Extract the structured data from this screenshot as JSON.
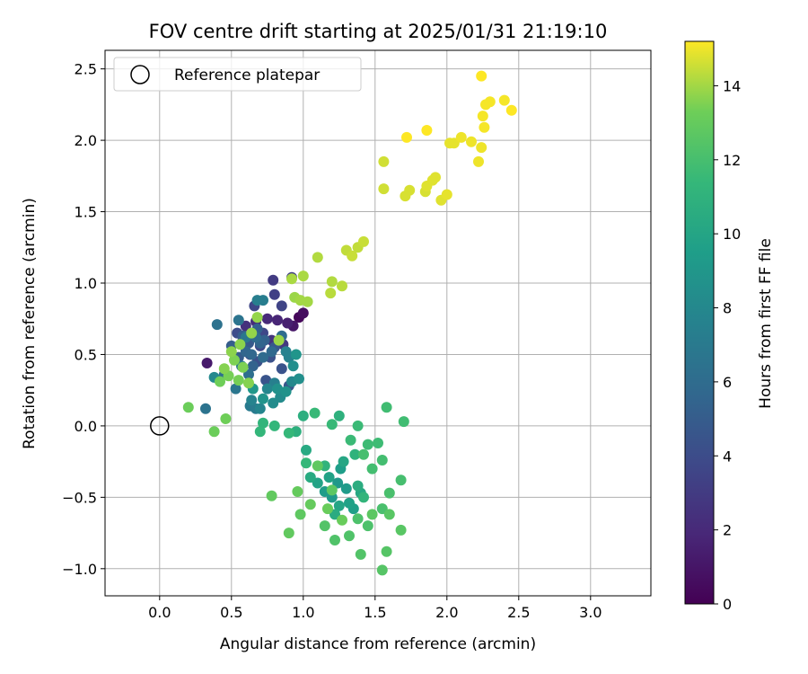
{
  "chart_data": {
    "type": "scatter",
    "title": "FOV centre drift starting at 2025/01/31 21:19:10",
    "xlabel": "Angular distance from reference (arcmin)",
    "ylabel": "Rotation from reference (arcmin)",
    "xlim": [
      -0.38,
      3.42
    ],
    "ylim": [
      -1.19,
      2.63
    ],
    "xticks": [
      0.0,
      0.5,
      1.0,
      1.5,
      2.0,
      2.5,
      3.0
    ],
    "xtick_labels": [
      "0.0",
      "0.5",
      "1.0",
      "1.5",
      "2.0",
      "2.5",
      "3.0"
    ],
    "yticks": [
      -1.0,
      -0.5,
      0.0,
      0.5,
      1.0,
      1.5,
      2.0,
      2.5
    ],
    "ytick_labels": [
      "−1.0",
      "−0.5",
      "0.0",
      "0.5",
      "1.0",
      "1.5",
      "2.0",
      "2.5"
    ],
    "grid": true,
    "legend": {
      "placement": "top-left",
      "entries": [
        {
          "label": "Reference platepar",
          "marker": "open-circle"
        }
      ]
    },
    "reference_point": {
      "x": 0.0,
      "y": 0.0
    },
    "colorbar": {
      "label": "Hours from first FF file",
      "colormap": "viridis",
      "range": [
        0,
        15.2
      ],
      "ticks": [
        0,
        2,
        4,
        6,
        8,
        10,
        12,
        14
      ],
      "tick_labels": [
        "0",
        "2",
        "4",
        "6",
        "8",
        "10",
        "12",
        "14"
      ]
    },
    "points": [
      {
        "x": 0.97,
        "y": 0.76,
        "c": 0.3
      },
      {
        "x": 1.0,
        "y": 0.79,
        "c": 0.6
      },
      {
        "x": 0.93,
        "y": 0.7,
        "c": 1.0
      },
      {
        "x": 0.33,
        "y": 0.44,
        "c": 1.2
      },
      {
        "x": 0.89,
        "y": 0.72,
        "c": 1.5
      },
      {
        "x": 0.82,
        "y": 0.74,
        "c": 1.8
      },
      {
        "x": 0.75,
        "y": 0.75,
        "c": 2.0
      },
      {
        "x": 0.67,
        "y": 0.73,
        "c": 2.2
      },
      {
        "x": 0.6,
        "y": 0.7,
        "c": 2.4
      },
      {
        "x": 0.78,
        "y": 0.6,
        "c": 2.6
      },
      {
        "x": 0.86,
        "y": 0.57,
        "c": 2.8
      },
      {
        "x": 0.79,
        "y": 1.02,
        "c": 3.0
      },
      {
        "x": 0.92,
        "y": 1.04,
        "c": 3.2
      },
      {
        "x": 0.8,
        "y": 0.92,
        "c": 3.3
      },
      {
        "x": 0.85,
        "y": 0.84,
        "c": 3.5
      },
      {
        "x": 0.66,
        "y": 0.84,
        "c": 3.6
      },
      {
        "x": 0.72,
        "y": 0.65,
        "c": 3.7
      },
      {
        "x": 0.7,
        "y": 0.56,
        "c": 3.8
      },
      {
        "x": 0.58,
        "y": 0.6,
        "c": 3.9
      },
      {
        "x": 0.54,
        "y": 0.65,
        "c": 4.0
      },
      {
        "x": 0.63,
        "y": 0.5,
        "c": 4.1
      },
      {
        "x": 0.68,
        "y": 0.45,
        "c": 4.2
      },
      {
        "x": 0.77,
        "y": 0.48,
        "c": 4.3
      },
      {
        "x": 0.85,
        "y": 0.4,
        "c": 4.4
      },
      {
        "x": 0.74,
        "y": 0.32,
        "c": 4.5
      },
      {
        "x": 0.9,
        "y": 0.28,
        "c": 4.6
      },
      {
        "x": 0.8,
        "y": 0.55,
        "c": 4.7
      },
      {
        "x": 0.62,
        "y": 0.58,
        "c": 4.8
      },
      {
        "x": 0.55,
        "y": 0.48,
        "c": 4.9
      },
      {
        "x": 0.5,
        "y": 0.56,
        "c": 5.0
      },
      {
        "x": 0.58,
        "y": 0.63,
        "c": 5.1
      },
      {
        "x": 0.68,
        "y": 0.68,
        "c": 5.2
      },
      {
        "x": 0.73,
        "y": 0.6,
        "c": 5.3
      },
      {
        "x": 0.65,
        "y": 0.42,
        "c": 5.4
      },
      {
        "x": 0.7,
        "y": 0.58,
        "c": 5.5
      },
      {
        "x": 0.6,
        "y": 0.52,
        "c": 5.6
      },
      {
        "x": 0.64,
        "y": 0.5,
        "c": 5.7
      },
      {
        "x": 0.78,
        "y": 0.52,
        "c": 5.8
      },
      {
        "x": 0.72,
        "y": 0.48,
        "c": 5.9
      },
      {
        "x": 0.67,
        "y": 0.62,
        "c": 6.0
      },
      {
        "x": 0.85,
        "y": 0.63,
        "c": 6.1
      },
      {
        "x": 0.62,
        "y": 0.36,
        "c": 6.2
      },
      {
        "x": 0.45,
        "y": 0.36,
        "c": 6.3
      },
      {
        "x": 0.4,
        "y": 0.71,
        "c": 6.4
      },
      {
        "x": 0.32,
        "y": 0.12,
        "c": 6.5
      },
      {
        "x": 0.55,
        "y": 0.74,
        "c": 6.6
      },
      {
        "x": 0.53,
        "y": 0.26,
        "c": 6.7
      },
      {
        "x": 0.6,
        "y": 0.62,
        "c": 6.8
      },
      {
        "x": 0.57,
        "y": 0.42,
        "c": 6.9
      },
      {
        "x": 0.63,
        "y": 0.14,
        "c": 7.0
      },
      {
        "x": 0.67,
        "y": 0.12,
        "c": 7.1
      },
      {
        "x": 0.72,
        "y": 0.88,
        "c": 7.2
      },
      {
        "x": 0.68,
        "y": 0.88,
        "c": 7.3
      },
      {
        "x": 0.8,
        "y": 0.3,
        "c": 7.4
      },
      {
        "x": 0.88,
        "y": 0.52,
        "c": 7.5
      },
      {
        "x": 0.9,
        "y": 0.48,
        "c": 7.6
      },
      {
        "x": 0.64,
        "y": 0.18,
        "c": 7.7
      },
      {
        "x": 0.7,
        "y": 0.12,
        "c": 7.8
      },
      {
        "x": 0.75,
        "y": 0.26,
        "c": 7.9
      },
      {
        "x": 0.92,
        "y": 0.31,
        "c": 8.0
      },
      {
        "x": 0.38,
        "y": 0.34,
        "c": 8.1
      },
      {
        "x": 0.84,
        "y": 0.2,
        "c": 8.2
      },
      {
        "x": 0.79,
        "y": 0.16,
        "c": 8.3
      },
      {
        "x": 0.93,
        "y": 0.42,
        "c": 8.4
      },
      {
        "x": 0.97,
        "y": 0.33,
        "c": 8.5
      },
      {
        "x": 0.82,
        "y": 0.26,
        "c": 8.6
      },
      {
        "x": 0.88,
        "y": 0.24,
        "c": 8.7
      },
      {
        "x": 0.72,
        "y": 0.19,
        "c": 8.8
      },
      {
        "x": 0.95,
        "y": 0.5,
        "c": 8.9
      },
      {
        "x": 0.65,
        "y": 0.26,
        "c": 9.0
      },
      {
        "x": 1.24,
        "y": -0.4,
        "c": 9.1
      },
      {
        "x": 1.2,
        "y": -0.5,
        "c": 9.2
      },
      {
        "x": 1.3,
        "y": -0.44,
        "c": 9.3
      },
      {
        "x": 1.15,
        "y": -0.46,
        "c": 9.4
      },
      {
        "x": 1.26,
        "y": -0.3,
        "c": 9.5
      },
      {
        "x": 1.35,
        "y": -0.58,
        "c": 9.6
      },
      {
        "x": 1.32,
        "y": -0.54,
        "c": 9.7
      },
      {
        "x": 1.18,
        "y": -0.36,
        "c": 9.8
      },
      {
        "x": 1.1,
        "y": -0.4,
        "c": 9.9
      },
      {
        "x": 1.25,
        "y": -0.56,
        "c": 10.0
      },
      {
        "x": 1.28,
        "y": -0.25,
        "c": 10.1
      },
      {
        "x": 1.4,
        "y": -0.47,
        "c": 10.2
      },
      {
        "x": 1.02,
        "y": -0.17,
        "c": 10.3
      },
      {
        "x": 1.05,
        "y": -0.36,
        "c": 10.4
      },
      {
        "x": 1.22,
        "y": -0.62,
        "c": 10.5
      },
      {
        "x": 1.38,
        "y": -0.42,
        "c": 10.6
      },
      {
        "x": 1.0,
        "y": 0.07,
        "c": 10.7
      },
      {
        "x": 0.95,
        "y": -0.04,
        "c": 10.8
      },
      {
        "x": 1.25,
        "y": 0.07,
        "c": 10.9
      },
      {
        "x": 1.36,
        "y": -0.2,
        "c": 11.0
      },
      {
        "x": 1.15,
        "y": -0.28,
        "c": 11.1
      },
      {
        "x": 1.42,
        "y": -0.5,
        "c": 11.2
      },
      {
        "x": 0.72,
        "y": 0.02,
        "c": 11.2
      },
      {
        "x": 0.8,
        "y": 0.0,
        "c": 11.3
      },
      {
        "x": 0.7,
        "y": -0.04,
        "c": 11.3
      },
      {
        "x": 0.9,
        "y": -0.05,
        "c": 11.4
      },
      {
        "x": 1.02,
        "y": -0.26,
        "c": 11.4
      },
      {
        "x": 1.08,
        "y": 0.09,
        "c": 11.5
      },
      {
        "x": 1.2,
        "y": 0.01,
        "c": 11.5
      },
      {
        "x": 1.33,
        "y": -0.1,
        "c": 11.6
      },
      {
        "x": 1.38,
        "y": 0.0,
        "c": 11.6
      },
      {
        "x": 1.45,
        "y": -0.13,
        "c": 11.7
      },
      {
        "x": 1.52,
        "y": -0.12,
        "c": 11.7
      },
      {
        "x": 1.58,
        "y": 0.13,
        "c": 11.8
      },
      {
        "x": 1.7,
        "y": 0.03,
        "c": 11.8
      },
      {
        "x": 1.55,
        "y": -0.24,
        "c": 11.9
      },
      {
        "x": 1.48,
        "y": -0.3,
        "c": 11.9
      },
      {
        "x": 1.42,
        "y": -0.2,
        "c": 12.0
      },
      {
        "x": 1.68,
        "y": -0.38,
        "c": 12.0
      },
      {
        "x": 1.6,
        "y": -0.47,
        "c": 12.1
      },
      {
        "x": 1.55,
        "y": -0.58,
        "c": 12.1
      },
      {
        "x": 1.45,
        "y": -0.7,
        "c": 12.2
      },
      {
        "x": 1.38,
        "y": -0.65,
        "c": 12.2
      },
      {
        "x": 1.32,
        "y": -0.77,
        "c": 12.3
      },
      {
        "x": 1.22,
        "y": -0.8,
        "c": 12.3
      },
      {
        "x": 1.15,
        "y": -0.7,
        "c": 12.4
      },
      {
        "x": 1.4,
        "y": -0.9,
        "c": 12.4
      },
      {
        "x": 1.55,
        "y": -1.01,
        "c": 12.5
      },
      {
        "x": 1.58,
        "y": -0.88,
        "c": 12.5
      },
      {
        "x": 1.68,
        "y": -0.73,
        "c": 12.6
      },
      {
        "x": 1.6,
        "y": -0.62,
        "c": 12.6
      },
      {
        "x": 1.48,
        "y": -0.62,
        "c": 12.7
      },
      {
        "x": 1.2,
        "y": -0.45,
        "c": 12.7
      },
      {
        "x": 1.1,
        "y": -0.28,
        "c": 12.8
      },
      {
        "x": 0.98,
        "y": -0.62,
        "c": 12.8
      },
      {
        "x": 0.9,
        "y": -0.75,
        "c": 12.9
      },
      {
        "x": 0.78,
        "y": -0.49,
        "c": 12.9
      },
      {
        "x": 0.96,
        "y": -0.46,
        "c": 13.0
      },
      {
        "x": 1.05,
        "y": -0.55,
        "c": 13.0
      },
      {
        "x": 1.17,
        "y": -0.58,
        "c": 13.1
      },
      {
        "x": 1.27,
        "y": -0.66,
        "c": 13.1
      },
      {
        "x": 0.2,
        "y": 0.13,
        "c": 13.2
      },
      {
        "x": 0.38,
        "y": -0.04,
        "c": 13.2
      },
      {
        "x": 0.46,
        "y": 0.05,
        "c": 13.3
      },
      {
        "x": 0.42,
        "y": 0.31,
        "c": 13.3
      },
      {
        "x": 0.48,
        "y": 0.35,
        "c": 13.4
      },
      {
        "x": 0.55,
        "y": 0.32,
        "c": 13.4
      },
      {
        "x": 0.58,
        "y": 0.41,
        "c": 13.5
      },
      {
        "x": 0.52,
        "y": 0.46,
        "c": 13.5
      },
      {
        "x": 0.45,
        "y": 0.4,
        "c": 13.6
      },
      {
        "x": 0.62,
        "y": 0.3,
        "c": 13.6
      },
      {
        "x": 0.56,
        "y": 0.57,
        "c": 13.7
      },
      {
        "x": 0.5,
        "y": 0.52,
        "c": 13.7
      },
      {
        "x": 0.64,
        "y": 0.65,
        "c": 13.8
      },
      {
        "x": 0.68,
        "y": 0.76,
        "c": 13.8
      },
      {
        "x": 0.83,
        "y": 0.6,
        "c": 13.9
      },
      {
        "x": 0.94,
        "y": 0.9,
        "c": 13.9
      },
      {
        "x": 1.03,
        "y": 0.87,
        "c": 14.0
      },
      {
        "x": 0.98,
        "y": 0.88,
        "c": 14.0
      },
      {
        "x": 1.0,
        "y": 1.05,
        "c": 14.1
      },
      {
        "x": 0.92,
        "y": 1.03,
        "c": 14.1
      },
      {
        "x": 1.1,
        "y": 1.18,
        "c": 14.2
      },
      {
        "x": 1.2,
        "y": 1.01,
        "c": 14.2
      },
      {
        "x": 1.27,
        "y": 0.98,
        "c": 14.3
      },
      {
        "x": 1.19,
        "y": 0.93,
        "c": 14.3
      },
      {
        "x": 1.3,
        "y": 1.23,
        "c": 14.4
      },
      {
        "x": 1.38,
        "y": 1.25,
        "c": 14.4
      },
      {
        "x": 1.42,
        "y": 1.29,
        "c": 14.5
      },
      {
        "x": 1.34,
        "y": 1.19,
        "c": 14.5
      },
      {
        "x": 1.56,
        "y": 1.66,
        "c": 14.6
      },
      {
        "x": 1.56,
        "y": 1.85,
        "c": 14.6
      },
      {
        "x": 1.71,
        "y": 1.61,
        "c": 14.7
      },
      {
        "x": 1.74,
        "y": 1.65,
        "c": 14.7
      },
      {
        "x": 1.85,
        "y": 1.64,
        "c": 14.7
      },
      {
        "x": 1.86,
        "y": 1.68,
        "c": 14.8
      },
      {
        "x": 1.9,
        "y": 1.72,
        "c": 14.8
      },
      {
        "x": 1.96,
        "y": 1.58,
        "c": 14.8
      },
      {
        "x": 2.0,
        "y": 1.62,
        "c": 14.9
      },
      {
        "x": 2.02,
        "y": 1.98,
        "c": 14.9
      },
      {
        "x": 2.05,
        "y": 1.98,
        "c": 14.9
      },
      {
        "x": 2.1,
        "y": 2.02,
        "c": 15.0
      },
      {
        "x": 2.17,
        "y": 1.99,
        "c": 15.0
      },
      {
        "x": 2.22,
        "y": 1.85,
        "c": 15.0
      },
      {
        "x": 2.24,
        "y": 1.95,
        "c": 15.0
      },
      {
        "x": 2.25,
        "y": 2.17,
        "c": 15.1
      },
      {
        "x": 2.26,
        "y": 2.09,
        "c": 15.1
      },
      {
        "x": 2.27,
        "y": 2.25,
        "c": 15.1
      },
      {
        "x": 2.3,
        "y": 2.27,
        "c": 15.1
      },
      {
        "x": 2.4,
        "y": 2.28,
        "c": 15.1
      },
      {
        "x": 2.45,
        "y": 2.21,
        "c": 15.2
      },
      {
        "x": 2.24,
        "y": 2.45,
        "c": 15.2
      },
      {
        "x": 1.72,
        "y": 2.02,
        "c": 15.2
      },
      {
        "x": 1.86,
        "y": 2.07,
        "c": 15.2
      },
      {
        "x": 1.92,
        "y": 1.74,
        "c": 14.8
      }
    ]
  }
}
